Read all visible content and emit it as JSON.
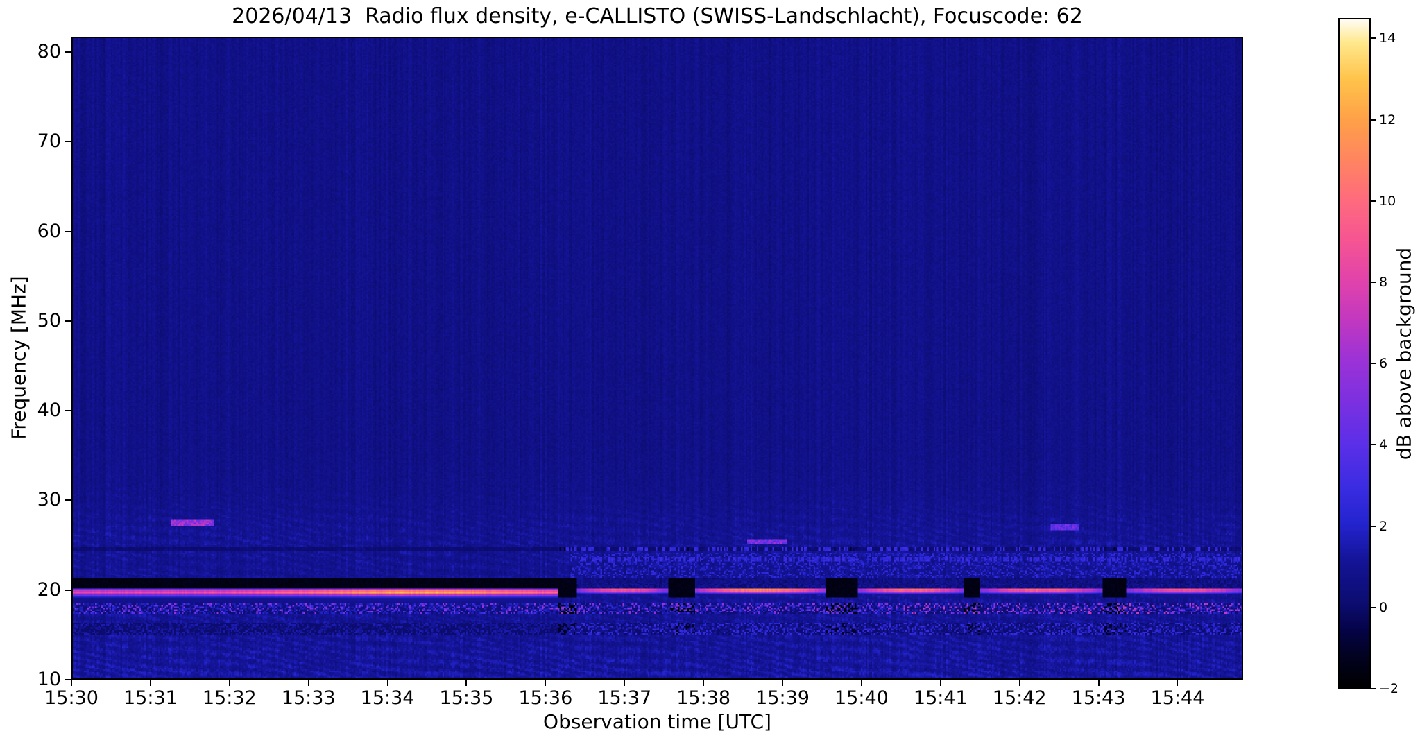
{
  "chart_data": {
    "type": "heatmap",
    "title": "2026/04/13  Radio flux density, e-CALLISTO (SWISS-Landschlacht), Focuscode: 62",
    "date": "2026/04/13",
    "instrument": "e-CALLISTO",
    "station": "SWISS-Landschlacht",
    "focuscode": "62",
    "xlabel": "Observation time [UTC]",
    "ylabel": "Frequency [MHz]",
    "x_axis": {
      "start_utc": "15:30",
      "duration_min": 14.83,
      "tick_labels": [
        "15:30",
        "15:31",
        "15:32",
        "15:33",
        "15:34",
        "15:35",
        "15:36",
        "15:37",
        "15:38",
        "15:39",
        "15:40",
        "15:41",
        "15:42",
        "15:43",
        "15:44"
      ]
    },
    "y_axis": {
      "min_mhz": 10,
      "max_mhz": 81.7,
      "tick_values": [
        10,
        20,
        30,
        40,
        50,
        60,
        70,
        80
      ],
      "tick_labels": [
        "10",
        "20",
        "30",
        "40",
        "50",
        "60",
        "70",
        "80"
      ]
    },
    "colorbar": {
      "label": "dB above background",
      "min_db": -2,
      "max_db": 14.5,
      "tick_values": [
        14,
        12,
        10,
        8,
        6,
        4,
        2,
        0,
        -2
      ],
      "tick_labels": [
        "14",
        "12",
        "10",
        "8",
        "6",
        "4",
        "2",
        "0",
        "−2"
      ]
    },
    "colormap": {
      "name": "gnuplot2-like (black-navy-blue-violet-magenta-pink-orange-white)",
      "stops": [
        [
          0.0,
          "#000000"
        ],
        [
          0.05,
          "#020224"
        ],
        [
          0.085,
          "#050347"
        ],
        [
          0.125,
          "#0c0c70"
        ],
        [
          0.19,
          "#141498"
        ],
        [
          0.245,
          "#2424cf"
        ],
        [
          0.3,
          "#3b2ce2"
        ],
        [
          0.365,
          "#5c2fe8"
        ],
        [
          0.43,
          "#7d30e0"
        ],
        [
          0.49,
          "#9c32d7"
        ],
        [
          0.55,
          "#c238c0"
        ],
        [
          0.61,
          "#e243ab"
        ],
        [
          0.67,
          "#f65592"
        ],
        [
          0.73,
          "#ff6b7e"
        ],
        [
          0.79,
          "#ff8560"
        ],
        [
          0.85,
          "#ffa148"
        ],
        [
          0.91,
          "#ffc34a"
        ],
        [
          0.965,
          "#ffe88c"
        ],
        [
          1.0,
          "#fffdf5"
        ]
      ]
    },
    "background_db": 0.7,
    "features": {
      "description": "Quiet-sun spectrogram: strong terrestrial interference band near 20 MHz (continuous until ~15:36, then bright segments separated by black dropouts), black saturation band 20.2-21.3 MHz, speckled RFI band near 18 MHz, dark dashed band near 15.5 MHz, wavy ionospheric ripples below ~32 MHz, small magenta RFI blobs near 27.5 MHz at ~15:31.5 and ~15:42.5 and near 25.4 MHz at ~15:38.8.",
      "emission_line": {
        "freq_mhz_before_1536": 19.75,
        "freq_mhz_after_1536": 20.05,
        "sigma_mhz": 0.3,
        "segments_min_peakdb": [
          [
            0,
            6.15,
            12.4
          ],
          [
            6.4,
            7.55,
            9.3
          ],
          [
            7.9,
            9.55,
            11.3
          ],
          [
            9.95,
            11.3,
            10.3
          ],
          [
            11.5,
            13.05,
            9.8
          ],
          [
            13.35,
            14.83,
            9.3
          ]
        ]
      },
      "black_band": {
        "f0": 20.15,
        "f1": 21.35,
        "level_db": -1.75
      },
      "speckle_band_18": {
        "f0": 17.35,
        "f1": 18.45
      },
      "dark_band_155": {
        "f0": 15.05,
        "f1": 16.35
      },
      "dark_line_248": {
        "f0": 24.35,
        "f1": 24.9
      },
      "ripple_max_freq_mhz": 36,
      "blobs_db": [
        {
          "t0": 1.25,
          "t1": 1.8,
          "f0": 27.1,
          "f1": 27.9,
          "db": 5.8
        },
        {
          "t0": 12.4,
          "t1": 12.75,
          "f0": 26.7,
          "f1": 27.4,
          "db": 4.3
        },
        {
          "t0": 8.55,
          "t1": 9.05,
          "f0": 25.15,
          "f1": 25.6,
          "db": 4.8
        }
      ]
    }
  }
}
